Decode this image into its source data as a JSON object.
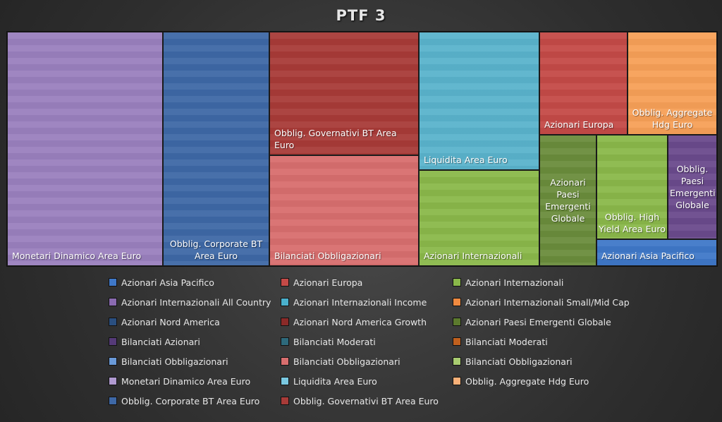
{
  "chart_data": {
    "type": "treemap",
    "title": "PTF 3",
    "series": [
      {
        "name": "Monetari Dinamico Area Euro",
        "value": 22.0,
        "color": "#9a80be"
      },
      {
        "name": "Obblig. Corporate BT Area Euro",
        "value": 15.0,
        "color": "#3e68a6"
      },
      {
        "name": "Obblig. Governativi BT Area Euro",
        "value": 11.0,
        "color": "#a83b38"
      },
      {
        "name": "Bilanciati Obbligazionari",
        "value": 10.0,
        "color": "#d86e6e"
      },
      {
        "name": "Liquidita Area Euro",
        "value": 11.0,
        "color": "#5ab3cc"
      },
      {
        "name": "Azionari Internazionali",
        "value": 7.5,
        "color": "#8ab84a"
      },
      {
        "name": "Azionari Europa",
        "value": 4.5,
        "color": "#c44a47"
      },
      {
        "name": "Obblig. Aggregate Hdg Euro",
        "value": 4.5,
        "color": "#f7a058"
      },
      {
        "name": "Azionari Paesi Emergenti Globale",
        "value": 3.5,
        "color": "#6a8c3c"
      },
      {
        "name": "Obblig. High Yield Area Euro",
        "value": 3.5,
        "color": "#8ab84a"
      },
      {
        "name": "Obblig. Paesi Emergenti Globale",
        "value": 2.5,
        "color": "#6a4a8c"
      },
      {
        "name": "Azionari Asia Pacifico",
        "value": 1.2,
        "color": "#3f78c8"
      }
    ],
    "legend": [
      {
        "label": "Azionari Asia Pacifico",
        "color": "#3f78c8"
      },
      {
        "label": "Azionari Europa",
        "color": "#c44a47"
      },
      {
        "label": "Azionari Internazionali",
        "color": "#8ab84a"
      },
      {
        "label": "Azionari Internazionali All Country",
        "color": "#8a6ab0"
      },
      {
        "label": "Azionari Internazionali Income",
        "color": "#4ab0cc"
      },
      {
        "label": "Azionari Internazionali Small/Mid Cap",
        "color": "#f08a40"
      },
      {
        "label": "Azionari Nord America",
        "color": "#2a4f80"
      },
      {
        "label": "Azionari Nord America Growth",
        "color": "#8a2a28"
      },
      {
        "label": "Azionari Paesi Emergenti Globale",
        "color": "#5c7a2e"
      },
      {
        "label": "Bilanciati Azionari",
        "color": "#553a78"
      },
      {
        "label": "Bilanciati Moderati",
        "color": "#2e6a7c"
      },
      {
        "label": "Bilanciati Moderati",
        "color": "#c0601e"
      },
      {
        "label": "Bilanciati Obbligazionari",
        "color": "#6a9ad8"
      },
      {
        "label": "Bilanciati Obbligazionari",
        "color": "#d86e6e"
      },
      {
        "label": "Bilanciati Obbligazionari",
        "color": "#a8cc70"
      },
      {
        "label": "Monetari Dinamico Area Euro",
        "color": "#b09ad0"
      },
      {
        "label": "Liquidita Area Euro",
        "color": "#7ac8e0"
      },
      {
        "label": "Obblig. Aggregate Hdg Euro",
        "color": "#f8b078"
      },
      {
        "label": "Obblig. Corporate BT Area Euro",
        "color": "#3e68a6"
      },
      {
        "label": "Obblig. Governativi BT Area Euro",
        "color": "#a83b38"
      }
    ]
  }
}
